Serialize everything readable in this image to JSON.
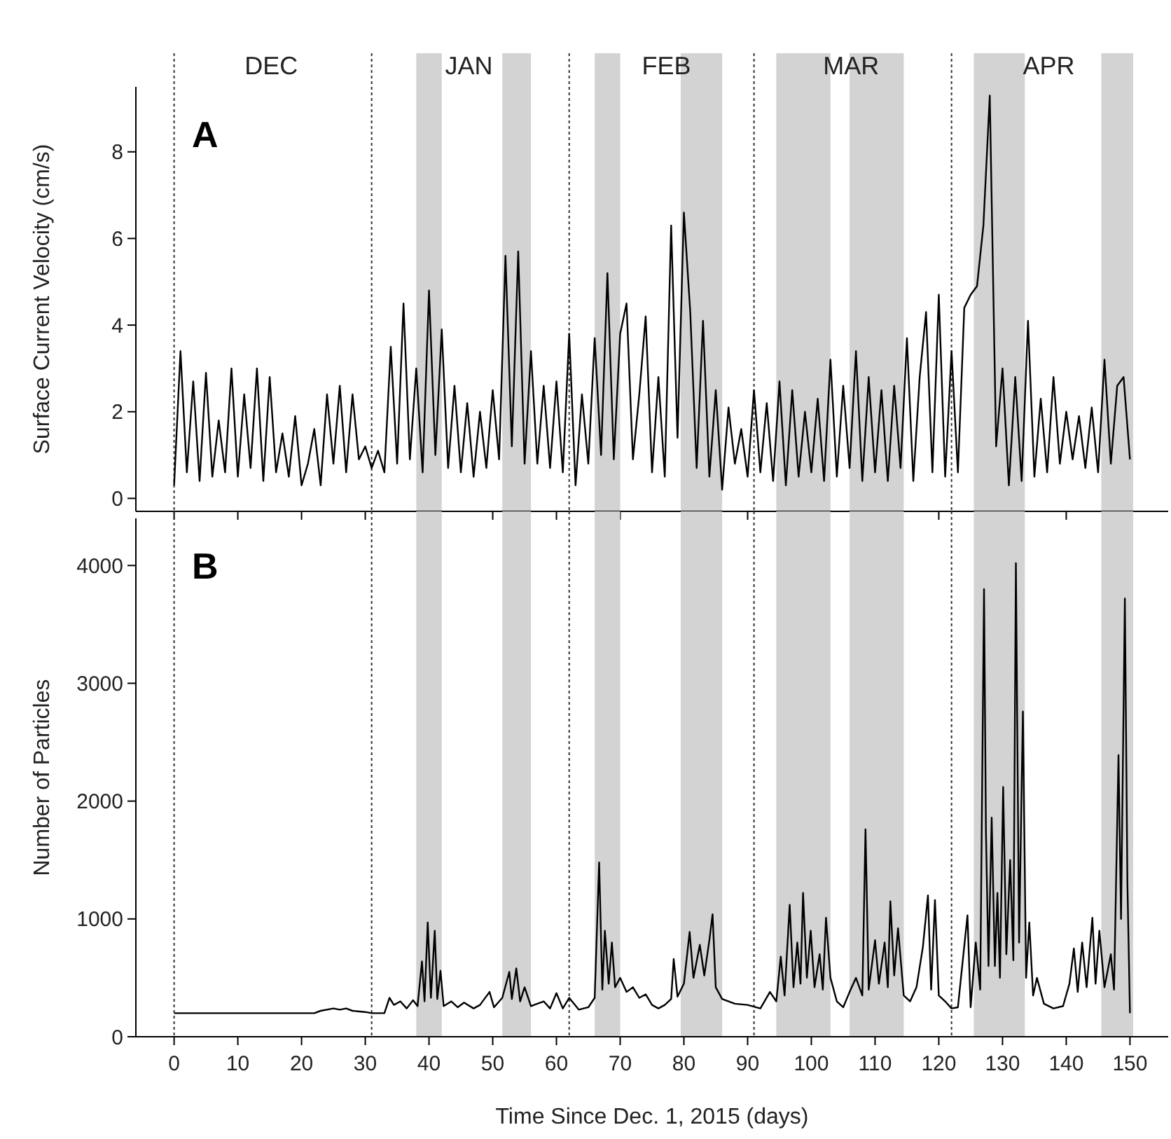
{
  "chart_data": [
    {
      "type": "line",
      "title": "A",
      "ylabel": "Surface Current Velocity (cm/s)",
      "x": [
        0,
        1,
        2,
        3,
        4,
        5,
        6,
        7,
        8,
        9,
        10,
        11,
        12,
        13,
        14,
        15,
        16,
        17,
        18,
        19,
        20,
        21,
        22,
        23,
        24,
        25,
        26,
        27,
        28,
        29,
        30,
        31,
        32,
        33,
        34,
        35,
        36,
        37,
        38,
        39,
        40,
        41,
        42,
        43,
        44,
        45,
        46,
        47,
        48,
        49,
        50,
        51,
        52,
        53,
        54,
        55,
        56,
        57,
        58,
        59,
        60,
        61,
        62,
        63,
        64,
        65,
        66,
        67,
        68,
        69,
        70,
        71,
        72,
        73,
        74,
        75,
        76,
        77,
        78,
        79,
        80,
        81,
        82,
        83,
        84,
        85,
        86,
        87,
        88,
        89,
        90,
        91,
        92,
        93,
        94,
        95,
        96,
        97,
        98,
        99,
        100,
        101,
        102,
        103,
        104,
        105,
        106,
        107,
        108,
        109,
        110,
        111,
        112,
        113,
        114,
        115,
        116,
        117,
        118,
        119,
        120,
        121,
        122,
        123,
        124,
        125,
        126,
        127,
        128,
        129,
        130,
        131,
        132,
        133,
        134,
        135,
        136,
        137,
        138,
        139,
        140,
        141,
        142,
        143,
        144,
        145,
        146,
        147,
        148,
        149,
        150
      ],
      "series": [
        {
          "color": "#000000",
          "values": [
            0.3,
            3.4,
            0.6,
            2.7,
            0.4,
            2.9,
            0.5,
            1.8,
            0.6,
            3.0,
            0.5,
            2.4,
            0.7,
            3.0,
            0.4,
            2.8,
            0.6,
            1.5,
            0.5,
            1.9,
            0.3,
            0.8,
            1.6,
            0.3,
            2.4,
            0.8,
            2.6,
            0.6,
            2.4,
            0.9,
            1.2,
            0.7,
            1.1,
            0.6,
            3.5,
            0.8,
            4.5,
            0.9,
            3.0,
            0.6,
            4.8,
            1.0,
            3.9,
            0.7,
            2.6,
            0.6,
            2.2,
            0.5,
            2.0,
            0.7,
            2.5,
            0.9,
            5.6,
            1.2,
            5.7,
            0.8,
            3.4,
            0.8,
            2.6,
            0.7,
            2.7,
            0.6,
            3.8,
            0.3,
            2.4,
            0.8,
            3.7,
            1.0,
            5.2,
            0.9,
            3.8,
            4.5,
            0.9,
            2.4,
            4.2,
            0.6,
            2.8,
            0.5,
            6.3,
            1.4,
            6.6,
            4.3,
            0.7,
            4.1,
            0.5,
            2.5,
            0.2,
            2.1,
            0.8,
            1.6,
            0.5,
            2.5,
            0.6,
            2.2,
            0.4,
            2.7,
            0.3,
            2.5,
            0.5,
            2.0,
            0.6,
            2.3,
            0.4,
            3.2,
            0.5,
            2.6,
            0.7,
            3.4,
            0.4,
            2.8,
            0.6,
            2.5,
            0.4,
            2.6,
            0.7,
            3.7,
            0.4,
            2.8,
            4.3,
            0.6,
            4.7,
            0.5,
            3.4,
            0.6,
            4.4,
            4.7,
            4.9,
            6.3,
            9.3,
            1.2,
            3.0,
            0.3,
            2.8,
            0.4,
            4.1,
            0.5,
            2.3,
            0.6,
            2.8,
            0.8,
            2.0,
            0.9,
            1.9,
            0.7,
            2.1,
            0.6,
            3.2,
            0.8,
            2.6,
            2.8,
            0.9
          ]
        }
      ],
      "xlim": [
        -6,
        156
      ],
      "xticks": [
        0,
        10,
        20,
        30,
        40,
        50,
        60,
        70,
        80,
        90,
        100,
        110,
        120,
        130,
        140,
        150
      ],
      "ylim": [
        -0.3,
        9.5
      ],
      "yticks": [
        0,
        2,
        4,
        6,
        8
      ],
      "tick_labels": "y",
      "ref_lines": [
        {
          "axis": "x",
          "value": 0,
          "label": null,
          "line_style": "dotted"
        },
        {
          "axis": "x",
          "value": 31,
          "label": null,
          "line_style": "dotted"
        },
        {
          "axis": "x",
          "value": 62,
          "label": null,
          "line_style": "dotted"
        },
        {
          "axis": "x",
          "value": 91,
          "label": null,
          "line_style": "dotted"
        },
        {
          "axis": "x",
          "value": 122,
          "label": null,
          "line_style": "dotted"
        }
      ],
      "bands": [
        {
          "axis": "x",
          "from": 38,
          "to": 42,
          "label": null,
          "color": "#d3d3d3"
        },
        {
          "axis": "x",
          "from": 51.5,
          "to": 56,
          "label": null,
          "color": "#d3d3d3"
        },
        {
          "axis": "x",
          "from": 66,
          "to": 70,
          "label": null,
          "color": "#d3d3d3"
        },
        {
          "axis": "x",
          "from": 79.5,
          "to": 86,
          "label": null,
          "color": "#d3d3d3"
        },
        {
          "axis": "x",
          "from": 94.5,
          "to": 103,
          "label": null,
          "color": "#d3d3d3"
        },
        {
          "axis": "x",
          "from": 106,
          "to": 114.5,
          "label": null,
          "color": "#d3d3d3"
        },
        {
          "axis": "x",
          "from": 125.5,
          "to": 133.5,
          "label": null,
          "color": "#d3d3d3"
        },
        {
          "axis": "x",
          "from": 145.5,
          "to": 150.5,
          "label": null,
          "color": "#d3d3d3"
        }
      ],
      "annotations": [
        "DEC",
        "JAN",
        "FEB",
        "MAR",
        "APR"
      ]
    },
    {
      "type": "line",
      "title": "B",
      "ylabel": "Number of Particles",
      "xlabel": "Time Since Dec. 1, 2015 (days)",
      "x": [
        0,
        22,
        23,
        25,
        26,
        27,
        28,
        30,
        31,
        33,
        33.8,
        34.5,
        35.5,
        36.5,
        37.5,
        38.2,
        38.9,
        39.3,
        39.8,
        40.3,
        40.9,
        41.3,
        41.8,
        42.3,
        43.5,
        44.5,
        45.5,
        47,
        48,
        49.5,
        50.2,
        51.5,
        52.6,
        53,
        53.7,
        54.3,
        55,
        56,
        58,
        59,
        60,
        61,
        62,
        63.5,
        65,
        66,
        66.7,
        67.2,
        67.6,
        68.2,
        68.7,
        69.2,
        70,
        71,
        72,
        73,
        74,
        75,
        76,
        77,
        78,
        78.4,
        79,
        80,
        80.9,
        81.5,
        82.5,
        83.2,
        84,
        84.5,
        85,
        86,
        88,
        90,
        92,
        93.5,
        94.5,
        95.2,
        95.8,
        96.6,
        97.2,
        97.8,
        98.3,
        98.7,
        99.3,
        99.9,
        100.5,
        101.3,
        101.8,
        102.3,
        103,
        104,
        105,
        106,
        107,
        108,
        108.5,
        109,
        110,
        110.6,
        111.5,
        112,
        112.4,
        113,
        113.6,
        114.5,
        115.5,
        116.5,
        117.5,
        118.3,
        118.8,
        119.4,
        120,
        121,
        122,
        123,
        124.5,
        125,
        125.8,
        126.5,
        127.1,
        127.4,
        127.8,
        128.3,
        128.8,
        129.2,
        129.6,
        130.1,
        130.6,
        131.2,
        131.7,
        132.1,
        132.6,
        133.2,
        133.7,
        134.2,
        134.8,
        135.4,
        136.5,
        138,
        139.5,
        140.5,
        141.2,
        141.8,
        142.5,
        143.2,
        144.1,
        144.6,
        145.2,
        146,
        147,
        147.5,
        148.2,
        148.6,
        149.2,
        149.6,
        150
      ],
      "series": [
        {
          "color": "#000000",
          "values": [
            200,
            200,
            220,
            240,
            230,
            240,
            220,
            210,
            200,
            200,
            330,
            270,
            300,
            240,
            310,
            260,
            640,
            300,
            970,
            330,
            900,
            320,
            560,
            260,
            300,
            250,
            290,
            240,
            270,
            380,
            250,
            330,
            550,
            320,
            580,
            300,
            420,
            260,
            300,
            240,
            370,
            240,
            330,
            230,
            250,
            330,
            1480,
            400,
            900,
            450,
            800,
            420,
            500,
            380,
            420,
            330,
            360,
            270,
            240,
            270,
            320,
            660,
            340,
            450,
            890,
            500,
            780,
            520,
            820,
            1040,
            420,
            320,
            280,
            270,
            240,
            380,
            300,
            680,
            350,
            1120,
            420,
            800,
            450,
            1220,
            500,
            900,
            420,
            700,
            400,
            1010,
            500,
            300,
            250,
            380,
            500,
            350,
            1760,
            400,
            820,
            450,
            800,
            420,
            1150,
            520,
            920,
            350,
            300,
            420,
            760,
            1200,
            400,
            1160,
            350,
            300,
            240,
            250,
            1030,
            250,
            800,
            400,
            3800,
            1740,
            600,
            1860,
            600,
            1220,
            500,
            2120,
            700,
            1500,
            650,
            4020,
            800,
            2760,
            500,
            970,
            350,
            500,
            280,
            240,
            260,
            450,
            750,
            380,
            800,
            420,
            1010,
            450,
            900,
            420,
            700,
            400,
            2390,
            1000,
            3720,
            1300,
            200
          ]
        }
      ],
      "xlim": [
        -6,
        156
      ],
      "xticks": [
        0,
        10,
        20,
        30,
        40,
        50,
        60,
        70,
        80,
        90,
        100,
        110,
        120,
        130,
        140,
        150
      ],
      "ylim": [
        0,
        4400
      ],
      "yticks": [
        0,
        1000,
        2000,
        3000,
        4000
      ],
      "ref_lines": [
        {
          "axis": "x",
          "value": 0,
          "label": null,
          "line_style": "dotted"
        },
        {
          "axis": "x",
          "value": 31,
          "label": null,
          "line_style": "dotted"
        },
        {
          "axis": "x",
          "value": 62,
          "label": null,
          "line_style": "dotted"
        },
        {
          "axis": "x",
          "value": 91,
          "label": null,
          "line_style": "dotted"
        },
        {
          "axis": "x",
          "value": 122,
          "label": null,
          "line_style": "dotted"
        }
      ],
      "bands": [
        {
          "axis": "x",
          "from": 38,
          "to": 42,
          "label": null,
          "color": "#d3d3d3"
        },
        {
          "axis": "x",
          "from": 51.5,
          "to": 56,
          "label": null,
          "color": "#d3d3d3"
        },
        {
          "axis": "x",
          "from": 66,
          "to": 70,
          "label": null,
          "color": "#d3d3d3"
        },
        {
          "axis": "x",
          "from": 79.5,
          "to": 86,
          "label": null,
          "color": "#d3d3d3"
        },
        {
          "axis": "x",
          "from": 94.5,
          "to": 103,
          "label": null,
          "color": "#d3d3d3"
        },
        {
          "axis": "x",
          "from": 106,
          "to": 114.5,
          "label": null,
          "color": "#d3d3d3"
        },
        {
          "axis": "x",
          "from": 125.5,
          "to": 133.5,
          "label": null,
          "color": "#d3d3d3"
        },
        {
          "axis": "x",
          "from": 145.5,
          "to": 150.5,
          "label": null,
          "color": "#d3d3d3"
        }
      ]
    }
  ]
}
